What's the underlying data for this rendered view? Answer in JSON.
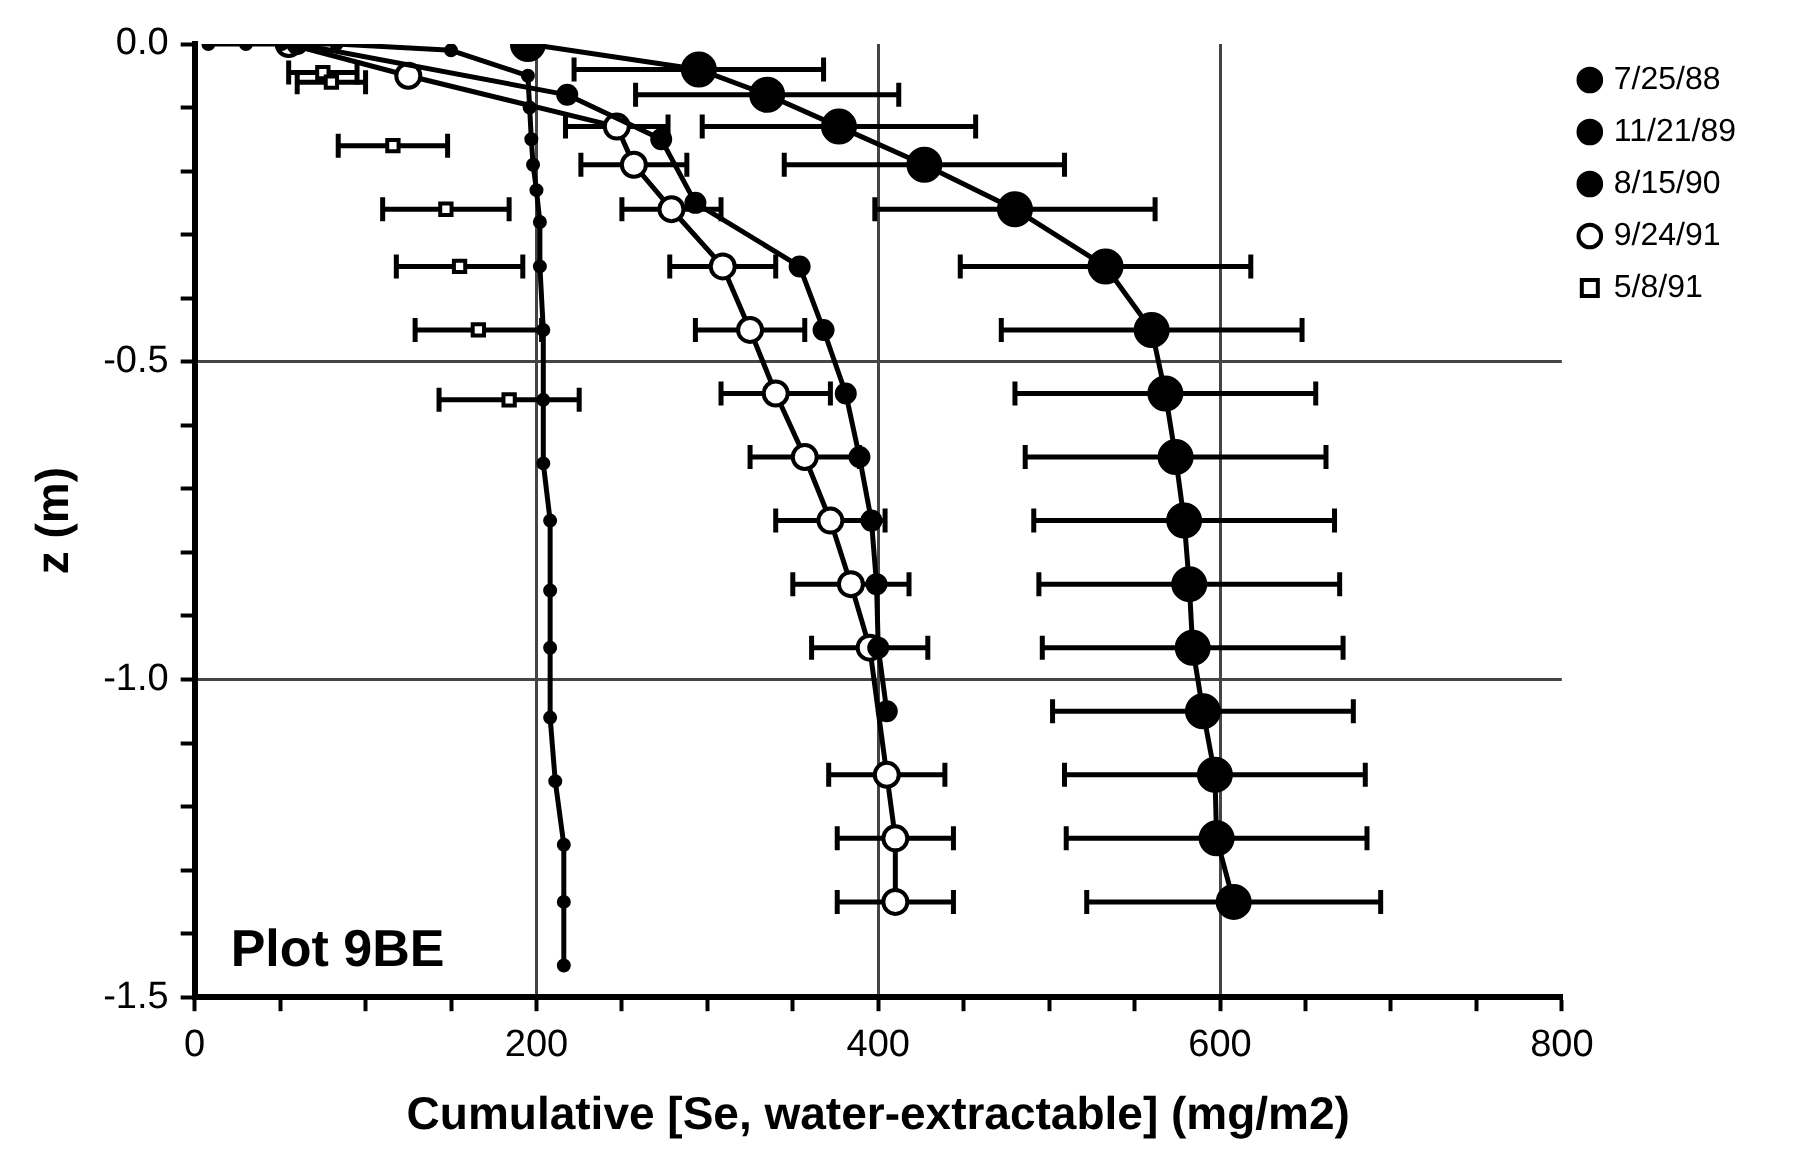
{
  "chart_data": {
    "type": "line",
    "xlabel": "Cumulative [Se, water-extractable] (mg/m2)",
    "ylabel": "z (m)",
    "xlim": [
      0,
      800
    ],
    "xticks": [
      0,
      {
        "value": 50,
        "label": null
      },
      {
        "value": 100,
        "label": null
      },
      {
        "value": 150,
        "label": null
      },
      200,
      {
        "value": 250,
        "label": null
      },
      {
        "value": 300,
        "label": null
      },
      {
        "value": 350,
        "label": null
      },
      400,
      {
        "value": 450,
        "label": null
      },
      {
        "value": 500,
        "label": null
      },
      {
        "value": 550,
        "label": null
      },
      600,
      {
        "value": 650,
        "label": null
      },
      {
        "value": 700,
        "label": null
      },
      {
        "value": 750,
        "label": null
      },
      800
    ],
    "ylim": [
      -1.5,
      0
    ],
    "yticks": [
      {
        "value": 0,
        "label": "0.0"
      },
      {
        "value": -0.1,
        "label": null
      },
      {
        "value": -0.2,
        "label": null
      },
      {
        "value": -0.3,
        "label": null
      },
      {
        "value": -0.4,
        "label": null
      },
      -0.5,
      {
        "value": -0.6,
        "label": null
      },
      {
        "value": -0.7,
        "label": null
      },
      {
        "value": -0.8,
        "label": null
      },
      {
        "value": -0.9,
        "label": null
      },
      {
        "value": -1,
        "label": "-1.0"
      },
      {
        "value": -1.1,
        "label": null
      },
      {
        "value": -1.2,
        "label": null
      },
      {
        "value": -1.3,
        "label": null
      },
      {
        "value": -1.4,
        "label": null
      },
      -1.5
    ],
    "grid": true,
    "legend": "top right",
    "line_style": "solid",
    "annotations": [
      "Plot 9BE"
    ],
    "series": [
      {
        "name": "7/25/88",
        "color": "#000000",
        "marker": "circle",
        "x": [
          8,
          30,
          51,
          83,
          150,
          195,
          196,
          197,
          198,
          200,
          202,
          202,
          204,
          204,
          204,
          208,
          208,
          208,
          208,
          211,
          216,
          216,
          216
        ],
        "values": [
          0,
          0,
          0,
          0,
          -0.01,
          -0.05,
          -0.1,
          -0.15,
          -0.19,
          -0.23,
          -0.28,
          -0.35,
          -0.45,
          -0.56,
          -0.66,
          -0.75,
          -0.86,
          -0.95,
          -1.06,
          -1.16,
          -1.26,
          -1.35,
          -1.45
        ]
      },
      {
        "name": "11/21/89",
        "color": "#000000",
        "marker": "circle",
        "x": [
          60,
          218,
          273,
          293,
          354,
          368,
          381,
          389,
          396,
          399,
          400,
          405
        ],
        "values": [
          0,
          -0.08,
          -0.15,
          -0.25,
          -0.35,
          -0.45,
          -0.55,
          -0.65,
          -0.75,
          -0.85,
          -0.95,
          -1.05
        ]
      },
      {
        "name": "8/15/90",
        "color": "#000000",
        "marker": "circle",
        "x": [
          195,
          295,
          335,
          377,
          427,
          480,
          533,
          560,
          568,
          574,
          579,
          582,
          584,
          590,
          597,
          598,
          608
        ],
        "values": [
          0,
          -0.04,
          -0.08,
          -0.13,
          -0.19,
          -0.26,
          -0.35,
          -0.45,
          -0.55,
          -0.65,
          -0.75,
          -0.85,
          -0.95,
          -1.05,
          -1.15,
          -1.25,
          -1.35
        ],
        "xerrors": [
          null,
          73,
          77,
          80,
          82,
          82,
          85,
          88,
          88,
          88,
          88,
          88,
          88,
          88,
          88,
          88,
          86
        ]
      },
      {
        "name": "9/24/91",
        "color": "#000000",
        "marker": "circle",
        "x": [
          55,
          125,
          247,
          257,
          279,
          309,
          325,
          340,
          357,
          372,
          384,
          395,
          405,
          410,
          410
        ],
        "values": [
          0,
          -0.05,
          -0.13,
          -0.19,
          -0.26,
          -0.35,
          -0.45,
          -0.55,
          -0.65,
          -0.75,
          -0.85,
          -0.95,
          -1.15,
          -1.25,
          -1.35
        ],
        "xerrors": [
          null,
          null,
          30,
          31,
          29,
          31,
          32,
          32,
          32,
          32,
          34,
          34,
          34,
          34,
          34
        ]
      },
      {
        "name": "5/8/91",
        "type": "scatter",
        "color": "#000000",
        "marker": "square",
        "x": [
          75,
          80,
          116,
          147,
          155,
          166,
          184
        ],
        "values": [
          -0.045,
          -0.06,
          -0.16,
          -0.26,
          -0.35,
          -0.45,
          -0.56
        ],
        "xerrors": [
          20,
          20,
          32,
          37,
          37,
          37,
          41
        ]
      }
    ]
  }
}
